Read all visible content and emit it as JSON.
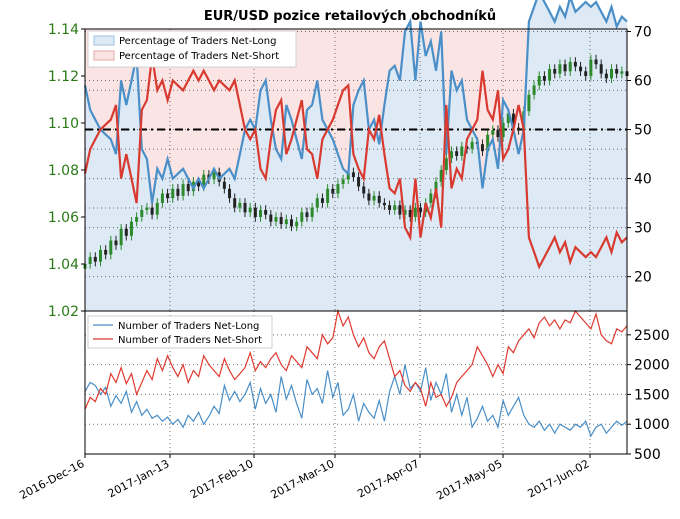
{
  "chart_data": [
    {
      "type": "line",
      "title": "EUR/USD pozice retailových obchodníků",
      "left_axis": {
        "ylim": [
          1.02,
          1.14
        ],
        "ticks": [
          "1.02",
          "1.04",
          "1.06",
          "1.08",
          "1.10",
          "1.12",
          "1.14"
        ],
        "color": "#2a7a18"
      },
      "right_axis": {
        "ylim": [
          13,
          70.5
        ],
        "ticks": [
          "20",
          "30",
          "40",
          "50",
          "60",
          "70"
        ]
      },
      "legend": {
        "placement": "top-left",
        "entries": [
          "Percentage of Traders Net-Long",
          "Percentage of Traders Net-Short"
        ]
      },
      "reference_line": {
        "axis": "right",
        "value": 50,
        "style": "dash-dot"
      },
      "grid": true,
      "series": [
        {
          "name": "Percentage of Traders Net-Long",
          "color": "#4a8fc7",
          "fill": "#dde9f5",
          "values": [
            59,
            54,
            52,
            50,
            49,
            48,
            45,
            60,
            55,
            60,
            65,
            46,
            44,
            35,
            42,
            40,
            44,
            40,
            41,
            42,
            40,
            38,
            40,
            38,
            40,
            42,
            40,
            41,
            42,
            40,
            45,
            50,
            52,
            50,
            58,
            60,
            52,
            46,
            44,
            55,
            52,
            48,
            44,
            54,
            55,
            60,
            52,
            50,
            48,
            45,
            42,
            41,
            55,
            58,
            60,
            50,
            52,
            47,
            55,
            62,
            63,
            60,
            70,
            72,
            60,
            72,
            65,
            68,
            62,
            70,
            45,
            62,
            58,
            60,
            52,
            50,
            48,
            38,
            46,
            48,
            42,
            56,
            54,
            50,
            45,
            50,
            72,
            75,
            78,
            76,
            74,
            72,
            75,
            73,
            77,
            74,
            75,
            76,
            75,
            76,
            74,
            72,
            75,
            71,
            73,
            72
          ]
        },
        {
          "name": "Percentage of Traders Net-Short",
          "color": "#d83a30",
          "fill": "#fbe4e4",
          "values": [
            41,
            46,
            48,
            50,
            51,
            52,
            55,
            40,
            45,
            40,
            35,
            54,
            56,
            65,
            58,
            60,
            56,
            60,
            59,
            58,
            60,
            62,
            60,
            62,
            60,
            58,
            60,
            59,
            58,
            60,
            55,
            50,
            48,
            50,
            42,
            40,
            48,
            54,
            56,
            45,
            48,
            52,
            56,
            46,
            45,
            40,
            48,
            50,
            52,
            55,
            58,
            59,
            45,
            42,
            40,
            50,
            48,
            53,
            45,
            38,
            37,
            40,
            30,
            28,
            40,
            28,
            35,
            32,
            38,
            30,
            55,
            38,
            42,
            40,
            48,
            50,
            52,
            62,
            54,
            52,
            58,
            44,
            46,
            50,
            55,
            50,
            28,
            25,
            22,
            24,
            26,
            28,
            25,
            27,
            23,
            26,
            25,
            24,
            25,
            24,
            26,
            28,
            25,
            29,
            27,
            28
          ]
        }
      ],
      "price_series": {
        "name": "EUR/USD",
        "axis": "left",
        "color_up": "#2c8a2c",
        "color_down": "#222222",
        "close": [
          1.04,
          1.043,
          1.041,
          1.046,
          1.044,
          1.05,
          1.048,
          1.055,
          1.052,
          1.058,
          1.06,
          1.063,
          1.064,
          1.061,
          1.066,
          1.07,
          1.068,
          1.072,
          1.069,
          1.074,
          1.071,
          1.075,
          1.073,
          1.078,
          1.076,
          1.079,
          1.075,
          1.072,
          1.068,
          1.064,
          1.066,
          1.062,
          1.064,
          1.06,
          1.063,
          1.061,
          1.058,
          1.06,
          1.057,
          1.059,
          1.056,
          1.058,
          1.062,
          1.06,
          1.064,
          1.068,
          1.066,
          1.072,
          1.07,
          1.074,
          1.076,
          1.079,
          1.077,
          1.073,
          1.07,
          1.067,
          1.069,
          1.066,
          1.065,
          1.063,
          1.065,
          1.061,
          1.063,
          1.06,
          1.064,
          1.062,
          1.066,
          1.07,
          1.075,
          1.08,
          1.085,
          1.088,
          1.086,
          1.09,
          1.089,
          1.092,
          1.091,
          1.088,
          1.095,
          1.097,
          1.094,
          1.1,
          1.104,
          1.098,
          1.097,
          1.105,
          1.112,
          1.116,
          1.12,
          1.118,
          1.123,
          1.121,
          1.125,
          1.122,
          1.126,
          1.124,
          1.122,
          1.12,
          1.127,
          1.125,
          1.121,
          1.119,
          1.123,
          1.121,
          1.122,
          1.12
        ]
      }
    },
    {
      "type": "line",
      "ylim": [
        500,
        2900
      ],
      "yticks": [
        "500",
        "1000",
        "1500",
        "2000",
        "2500"
      ],
      "legend": {
        "placement": "top-left",
        "entries": [
          "Number of Traders Net-Long",
          "Number of Traders Net-Short"
        ]
      },
      "grid": true,
      "x_ticks": [
        "2016-Dec-16",
        "2017-Jan-13",
        "2017-Feb-10",
        "2017-Mar-10",
        "2017-Apr-07",
        "2017-May-05",
        "2017-Jun-02"
      ],
      "series": [
        {
          "name": "Number of Traders Net-Long",
          "color": "#4a8fc7",
          "values": [
            1550,
            1700,
            1650,
            1500,
            1620,
            1300,
            1480,
            1350,
            1550,
            1200,
            1380,
            1150,
            1250,
            1100,
            1150,
            1050,
            1120,
            1000,
            1080,
            950,
            1150,
            1050,
            1200,
            1000,
            1130,
            1300,
            1180,
            1650,
            1400,
            1550,
            1380,
            1500,
            1700,
            1250,
            1600,
            1350,
            1500,
            1200,
            1800,
            1420,
            1650,
            1350,
            1100,
            1750,
            1500,
            1600,
            1350,
            1900,
            1450,
            1700,
            1150,
            1250,
            1500,
            1050,
            1350,
            1200,
            1100,
            1400,
            1050,
            1550,
            1800,
            1500,
            2000,
            1600,
            1700,
            1550,
            1950,
            1400,
            1700,
            1500,
            1850,
            1200,
            1500,
            1150,
            1450,
            950,
            1100,
            1300,
            1050,
            1150,
            950,
            1400,
            1150,
            1300,
            1450,
            1150,
            1000,
            950,
            1050,
            900,
            1000,
            850,
            1000,
            950,
            900,
            1000,
            950,
            1050,
            800,
            950,
            1000,
            850,
            950,
            1050,
            980,
            1050
          ]
        },
        {
          "name": "Number of Traders Net-Short",
          "color": "#e03a30",
          "values": [
            1250,
            1450,
            1380,
            1600,
            1500,
            1850,
            1700,
            1950,
            1680,
            1850,
            1500,
            1700,
            1900,
            1750,
            2100,
            1900,
            2150,
            1950,
            1800,
            2000,
            1700,
            1900,
            1800,
            2150,
            2000,
            1900,
            1800,
            2100,
            1900,
            1750,
            1850,
            1950,
            2200,
            1900,
            2050,
            1950,
            2100,
            2200,
            2000,
            1900,
            2150,
            2050,
            1950,
            2300,
            2200,
            2100,
            2500,
            2350,
            2450,
            2900,
            2650,
            2800,
            2500,
            2300,
            2450,
            2200,
            2100,
            2300,
            2400,
            2100,
            1800,
            1900,
            1650,
            1550,
            1700,
            1600,
            1300,
            1700,
            1450,
            1500,
            1300,
            1450,
            1700,
            1800,
            1900,
            2000,
            2300,
            2150,
            2000,
            1800,
            2000,
            1850,
            2300,
            2200,
            2400,
            2500,
            2600,
            2450,
            2700,
            2800,
            2650,
            2750,
            2600,
            2750,
            2700,
            2900,
            2800,
            2700,
            2600,
            2850,
            2500,
            2400,
            2350,
            2600,
            2550,
            2650
          ]
        }
      ]
    }
  ]
}
